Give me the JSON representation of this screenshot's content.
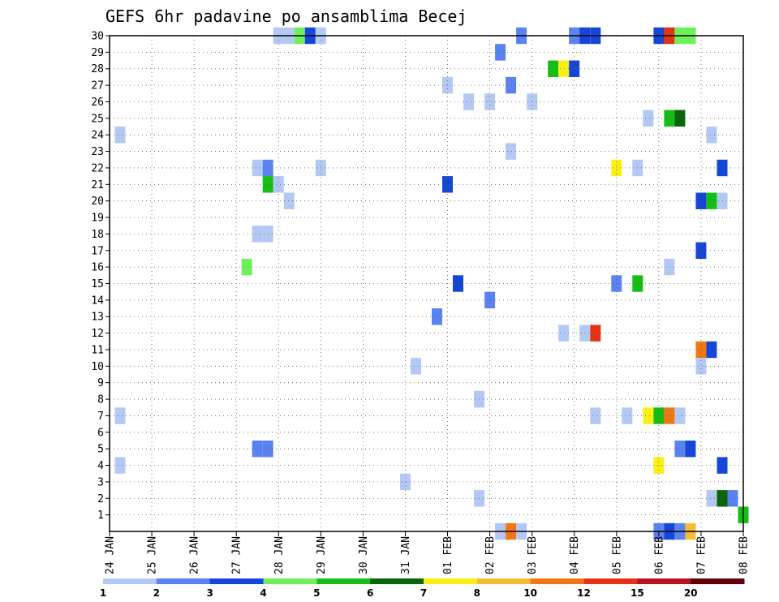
{
  "chart_data": {
    "type": "heatmap",
    "title": "GEFS 6hr padavine po ansamblima Becej",
    "xlabel": "",
    "ylabel": "",
    "x_ticks": [
      "24 JAN",
      "25 JAN",
      "26 JAN",
      "27 JAN",
      "28 JAN",
      "29 JAN",
      "30 JAN",
      "31 JAN",
      "01 FEB",
      "02 FEB",
      "03 FEB",
      "04 FEB",
      "05 FEB",
      "06 FEB",
      "07 FEB",
      "08 FEB"
    ],
    "y_ticks": [
      "1",
      "2",
      "3",
      "4",
      "5",
      "6",
      "7",
      "8",
      "9",
      "10",
      "11",
      "12",
      "13",
      "14",
      "15",
      "16",
      "17",
      "18",
      "19",
      "20",
      "21",
      "22",
      "23",
      "24",
      "25",
      "26",
      "27",
      "28",
      "29",
      "30"
    ],
    "xlim": [
      "24 JAN 00",
      "08 FEB 00"
    ],
    "ylim": [
      0,
      30
    ],
    "grid": true,
    "legend": {
      "placement": "bottom",
      "labels": [
        "1",
        "2",
        "3",
        "4",
        "5",
        "6",
        "7",
        "8",
        "10",
        "12",
        "15",
        "20"
      ],
      "colors": [
        "#b4c8f4",
        "#5a82f0",
        "#1446d8",
        "#6ef05a",
        "#14be14",
        "#0a640a",
        "#faf014",
        "#f5be32",
        "#f07814",
        "#e63214",
        "#b4141e",
        "#64000a"
      ]
    },
    "cells": [
      {
        "day": 0.25,
        "member": 24,
        "color": "#b4c8f4"
      },
      {
        "day": 0.25,
        "member": 7,
        "color": "#b4c8f4"
      },
      {
        "day": 0.25,
        "member": 4,
        "color": "#b4c8f4"
      },
      {
        "day": 3.25,
        "member": 16,
        "color": "#6ef05a"
      },
      {
        "day": 3.5,
        "member": 22,
        "color": "#b4c8f4"
      },
      {
        "day": 3.5,
        "member": 18,
        "color": "#b4c8f4"
      },
      {
        "day": 3.5,
        "member": 5,
        "color": "#5a82f0"
      },
      {
        "day": 3.75,
        "member": 22,
        "color": "#5a82f0"
      },
      {
        "day": 3.75,
        "member": 21,
        "color": "#14be14"
      },
      {
        "day": 3.75,
        "member": 18,
        "color": "#b4c8f4"
      },
      {
        "day": 3.75,
        "member": 5,
        "color": "#5a82f0"
      },
      {
        "day": 4.0,
        "member": 30,
        "color": "#b4c8f4"
      },
      {
        "day": 4.0,
        "member": 21,
        "color": "#b4c8f4"
      },
      {
        "day": 4.25,
        "member": 30,
        "color": "#b4c8f4"
      },
      {
        "day": 4.25,
        "member": 20,
        "color": "#b4c8f4"
      },
      {
        "day": 4.5,
        "member": 30,
        "color": "#6ef05a"
      },
      {
        "day": 4.75,
        "member": 30,
        "color": "#1446d8"
      },
      {
        "day": 5.0,
        "member": 30,
        "color": "#b4c8f4"
      },
      {
        "day": 5.0,
        "member": 22,
        "color": "#b4c8f4"
      },
      {
        "day": 7.25,
        "member": 10,
        "color": "#b4c8f4"
      },
      {
        "day": 7.0,
        "member": 3,
        "color": "#b4c8f4"
      },
      {
        "day": 7.75,
        "member": 13,
        "color": "#5a82f0"
      },
      {
        "day": 8.0,
        "member": 27,
        "color": "#b4c8f4"
      },
      {
        "day": 8.0,
        "member": 21,
        "color": "#1446d8"
      },
      {
        "day": 8.25,
        "member": 15,
        "color": "#1446d8"
      },
      {
        "day": 8.5,
        "member": 26,
        "color": "#b4c8f4"
      },
      {
        "day": 8.75,
        "member": 8,
        "color": "#b4c8f4"
      },
      {
        "day": 8.75,
        "member": 2,
        "color": "#b4c8f4"
      },
      {
        "day": 9.0,
        "member": 26,
        "color": "#b4c8f4"
      },
      {
        "day": 9.0,
        "member": 14,
        "color": "#5a82f0"
      },
      {
        "day": 9.25,
        "member": 29,
        "color": "#5a82f0"
      },
      {
        "day": 9.25,
        "member": 0,
        "color": "#b4c8f4"
      },
      {
        "day": 9.5,
        "member": 27,
        "color": "#5a82f0"
      },
      {
        "day": 9.5,
        "member": 23,
        "color": "#b4c8f4"
      },
      {
        "day": 9.5,
        "member": 0,
        "color": "#f07814"
      },
      {
        "day": 9.75,
        "member": 30,
        "color": "#5a82f0"
      },
      {
        "day": 9.75,
        "member": 0,
        "color": "#b4c8f4"
      },
      {
        "day": 10.0,
        "member": 26,
        "color": "#b4c8f4"
      },
      {
        "day": 10.5,
        "member": 28,
        "color": "#14be14"
      },
      {
        "day": 10.75,
        "member": 28,
        "color": "#faf014"
      },
      {
        "day": 10.75,
        "member": 12,
        "color": "#b4c8f4"
      },
      {
        "day": 11.0,
        "member": 30,
        "color": "#5a82f0"
      },
      {
        "day": 11.0,
        "member": 28,
        "color": "#1446d8"
      },
      {
        "day": 11.25,
        "member": 30,
        "color": "#1446d8"
      },
      {
        "day": 11.25,
        "member": 12,
        "color": "#b4c8f4"
      },
      {
        "day": 11.5,
        "member": 30,
        "color": "#1446d8"
      },
      {
        "day": 11.5,
        "member": 12,
        "color": "#e63214"
      },
      {
        "day": 11.5,
        "member": 7,
        "color": "#b4c8f4"
      },
      {
        "day": 12.0,
        "member": 22,
        "color": "#faf014"
      },
      {
        "day": 12.0,
        "member": 15,
        "color": "#5a82f0"
      },
      {
        "day": 12.25,
        "member": 7,
        "color": "#b4c8f4"
      },
      {
        "day": 12.5,
        "member": 22,
        "color": "#b4c8f4"
      },
      {
        "day": 12.5,
        "member": 15,
        "color": "#14be14"
      },
      {
        "day": 12.75,
        "member": 25,
        "color": "#b4c8f4"
      },
      {
        "day": 12.75,
        "member": 7,
        "color": "#faf014"
      },
      {
        "day": 13.0,
        "member": 30,
        "color": "#1446d8"
      },
      {
        "day": 13.0,
        "member": 7,
        "color": "#14be14"
      },
      {
        "day": 13.0,
        "member": 4,
        "color": "#faf014"
      },
      {
        "day": 13.0,
        "member": 0,
        "color": "#5a82f0"
      },
      {
        "day": 13.25,
        "member": 30,
        "color": "#e63214"
      },
      {
        "day": 13.25,
        "member": 25,
        "color": "#14be14"
      },
      {
        "day": 13.25,
        "member": 16,
        "color": "#b4c8f4"
      },
      {
        "day": 13.25,
        "member": 7,
        "color": "#f07814"
      },
      {
        "day": 13.25,
        "member": 0,
        "color": "#1446d8"
      },
      {
        "day": 13.5,
        "member": 30,
        "color": "#6ef05a"
      },
      {
        "day": 13.5,
        "member": 25,
        "color": "#0a640a"
      },
      {
        "day": 13.5,
        "member": 7,
        "color": "#b4c8f4"
      },
      {
        "day": 13.5,
        "member": 5,
        "color": "#5a82f0"
      },
      {
        "day": 13.5,
        "member": 0,
        "color": "#5a82f0"
      },
      {
        "day": 13.75,
        "member": 30,
        "color": "#6ef05a"
      },
      {
        "day": 13.75,
        "member": 5,
        "color": "#1446d8"
      },
      {
        "day": 13.75,
        "member": 0,
        "color": "#f5be32"
      },
      {
        "day": 14.0,
        "member": 20,
        "color": "#1446d8"
      },
      {
        "day": 14.0,
        "member": 17,
        "color": "#1446d8"
      },
      {
        "day": 14.0,
        "member": 11,
        "color": "#f07814"
      },
      {
        "day": 14.0,
        "member": 10,
        "color": "#b4c8f4"
      },
      {
        "day": 14.25,
        "member": 24,
        "color": "#b4c8f4"
      },
      {
        "day": 14.25,
        "member": 20,
        "color": "#14be14"
      },
      {
        "day": 14.25,
        "member": 11,
        "color": "#1446d8"
      },
      {
        "day": 14.25,
        "member": 2,
        "color": "#b4c8f4"
      },
      {
        "day": 14.5,
        "member": 22,
        "color": "#1446d8"
      },
      {
        "day": 14.5,
        "member": 20,
        "color": "#b4c8f4"
      },
      {
        "day": 14.5,
        "member": 4,
        "color": "#1446d8"
      },
      {
        "day": 14.5,
        "member": 2,
        "color": "#0a640a"
      },
      {
        "day": 14.75,
        "member": 2,
        "color": "#5a82f0"
      },
      {
        "day": 15.0,
        "member": 1,
        "color": "#14be14"
      }
    ]
  }
}
